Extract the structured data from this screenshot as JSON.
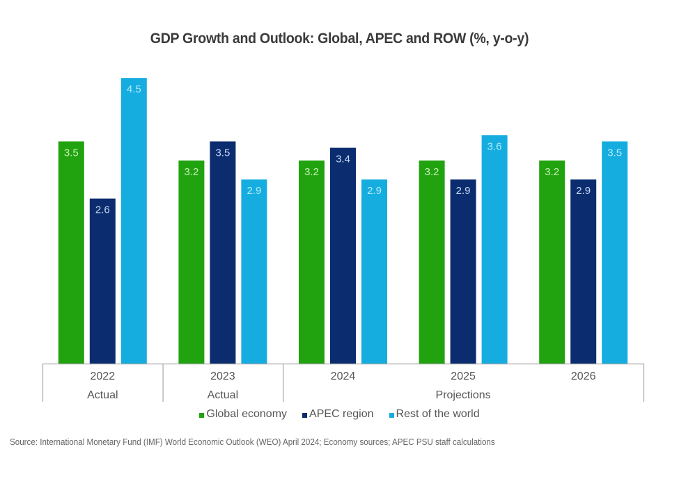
{
  "chart_data": {
    "type": "bar",
    "title": "GDP Growth and Outlook: Global, APEC and ROW (%, y-o-y)",
    "xlabel": "",
    "ylabel": "",
    "ylim": [
      0,
      4.5
    ],
    "grid": false,
    "categories": [
      "2022",
      "2023",
      "2024",
      "2025",
      "2026"
    ],
    "category_groups": [
      {
        "label": "Actual",
        "categories": [
          "2022"
        ]
      },
      {
        "label": "Actual",
        "categories": [
          "2023"
        ]
      },
      {
        "label": "Projections",
        "categories": [
          "2024",
          "2025",
          "2026"
        ]
      }
    ],
    "series": [
      {
        "name": "Global economy",
        "color": "#21a30f",
        "label_color": "#c8eeb8",
        "values": [
          3.5,
          3.2,
          3.2,
          3.2,
          3.2
        ]
      },
      {
        "name": "APEC region",
        "color": "#0b2d6f",
        "label_color": "#c7d6f2",
        "values": [
          2.6,
          3.5,
          3.4,
          2.9,
          2.9
        ]
      },
      {
        "name": "Rest of the world",
        "color": "#15ade0",
        "label_color": "#b7e9fb",
        "values": [
          4.5,
          2.9,
          2.9,
          3.6,
          3.5
        ]
      }
    ],
    "legend_position": "bottom",
    "data_labels": true
  },
  "source": "Source: International Monetary Fund (IMF) World Economic Outlook (WEO) April 2024; Economy sources; APEC PSU staff calculations"
}
